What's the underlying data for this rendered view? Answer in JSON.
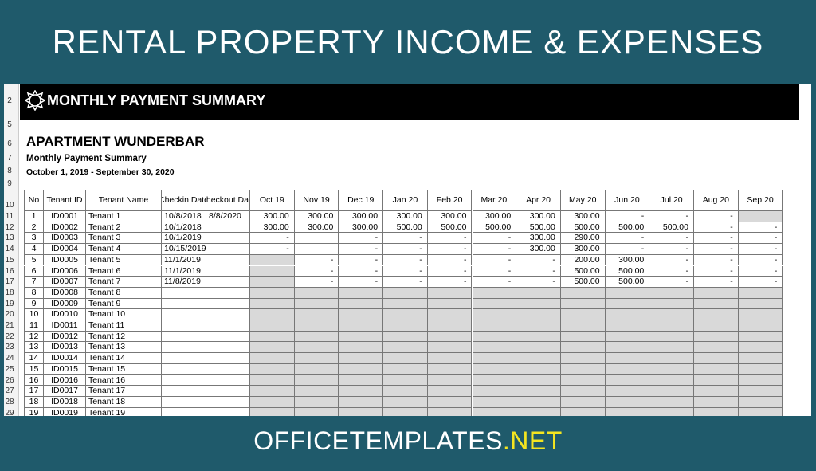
{
  "header": {
    "title": "RENTAL PROPERTY INCOME & EXPENSES"
  },
  "banner": {
    "title": "MONTHLY PAYMENT SUMMARY"
  },
  "row_numbers": [
    2,
    5,
    6,
    7,
    8,
    9,
    10,
    11,
    12,
    13,
    14,
    15,
    16,
    17,
    18,
    19,
    20,
    21,
    22,
    23,
    24,
    25,
    26,
    27,
    28,
    29
  ],
  "sheet": {
    "property": "APARTMENT WUNDERBAR",
    "subtitle": "Monthly Payment Summary",
    "period": "October 1, 2019 - September 30, 2020"
  },
  "table": {
    "columns": [
      "No",
      "Tenant ID",
      "Tenant Name",
      "Checkin Date",
      "Checkout Date",
      "Oct 19",
      "Nov 19",
      "Dec 19",
      "Jan 20",
      "Feb 20",
      "Mar 20",
      "Apr 20",
      "May 20",
      "Jun 20",
      "Jul 20",
      "Aug 20",
      "Sep 20"
    ],
    "rows": [
      [
        1,
        "ID0001",
        "Tenant 1",
        "10/8/2018",
        "8/8/2020",
        "300.00",
        "300.00",
        "300.00",
        "300.00",
        "300.00",
        "300.00",
        "300.00",
        "300.00",
        "-",
        "-",
        "-",
        null
      ],
      [
        2,
        "ID0002",
        "Tenant 2",
        "10/1/2018",
        null,
        "300.00",
        "300.00",
        "300.00",
        "500.00",
        "500.00",
        "500.00",
        "500.00",
        "500.00",
        "500.00",
        "500.00",
        "-",
        "-"
      ],
      [
        3,
        "ID0003",
        "Tenant 3",
        "10/1/2019",
        null,
        "-",
        null,
        "-",
        "-",
        "-",
        "-",
        "300.00",
        "290.00",
        "-",
        "-",
        "-",
        "-"
      ],
      [
        4,
        "ID0004",
        "Tenant 4",
        "10/15/2019",
        null,
        "-",
        null,
        "-",
        "-",
        "-",
        "-",
        "300.00",
        "300.00",
        "-",
        "-",
        "-",
        "-"
      ],
      [
        5,
        "ID0005",
        "Tenant 5",
        "11/1/2019",
        null,
        null,
        "-",
        "-",
        "-",
        "-",
        "-",
        "-",
        "200.00",
        "300.00",
        "-",
        "-",
        "-"
      ],
      [
        6,
        "ID0006",
        "Tenant 6",
        "11/1/2019",
        null,
        null,
        "-",
        "-",
        "-",
        "-",
        "-",
        "-",
        "500.00",
        "500.00",
        "-",
        "-",
        "-"
      ],
      [
        7,
        "ID0007",
        "Tenant 7",
        "11/8/2019",
        null,
        null,
        "-",
        "-",
        "-",
        "-",
        "-",
        "-",
        "500.00",
        "500.00",
        "-",
        "-",
        "-"
      ],
      [
        8,
        "ID0008",
        "Tenant 8"
      ],
      [
        9,
        "ID0009",
        "Tenant 9"
      ],
      [
        10,
        "ID0010",
        "Tenant 10"
      ],
      [
        11,
        "ID0011",
        "Tenant 11"
      ],
      [
        12,
        "ID0012",
        "Tenant 12"
      ],
      [
        13,
        "ID0013",
        "Tenant 13"
      ],
      [
        14,
        "ID0014",
        "Tenant 14"
      ],
      [
        15,
        "ID0015",
        "Tenant 15"
      ],
      [
        16,
        "ID0016",
        "Tenant 16"
      ],
      [
        17,
        "ID0017",
        "Tenant 17"
      ],
      [
        18,
        "ID0018",
        "Tenant 18"
      ],
      [
        19,
        "ID0019",
        "Tenant 19"
      ]
    ]
  },
  "footer": {
    "brand": "OFFICETEMPLATES",
    "suffix": ".NET"
  }
}
